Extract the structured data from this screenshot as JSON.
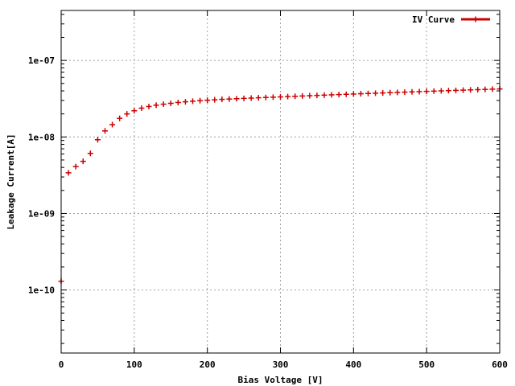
{
  "chart_data": {
    "type": "scatter",
    "title": "",
    "xlabel": "Bias Voltage [V]",
    "ylabel": "Leakage Current[A]",
    "xlim": [
      0,
      600
    ],
    "ylim": [
      1.5e-11,
      4.5e-07
    ],
    "yscale": "log",
    "grid": true,
    "legend_position": "top-right",
    "x_ticks": [
      "0",
      "100",
      "200",
      "300",
      "400",
      "500",
      "600"
    ],
    "y_ticks": [
      "1e-10",
      "1e-09",
      "1e-08",
      "1e-07"
    ],
    "series": [
      {
        "name": "IV Curve",
        "color": "#cc0000",
        "marker": "plus",
        "x": [
          0,
          10,
          20,
          30,
          40,
          50,
          60,
          70,
          80,
          90,
          100,
          110,
          120,
          130,
          140,
          150,
          160,
          170,
          180,
          190,
          200,
          210,
          220,
          230,
          240,
          250,
          260,
          270,
          280,
          290,
          300,
          310,
          320,
          330,
          340,
          350,
          360,
          370,
          380,
          390,
          400,
          410,
          420,
          430,
          440,
          450,
          460,
          470,
          480,
          490,
          500,
          510,
          520,
          530,
          540,
          550,
          560,
          570,
          580,
          590,
          600
        ],
        "y": [
          1.3e-10,
          3.4e-09,
          4.1e-09,
          4.8e-09,
          6.1e-09,
          9.2e-09,
          1.2e-08,
          1.45e-08,
          1.75e-08,
          2e-08,
          2.2e-08,
          2.38e-08,
          2.5e-08,
          2.6e-08,
          2.68e-08,
          2.75e-08,
          2.82e-08,
          2.88e-08,
          2.93e-08,
          2.98e-08,
          3.02e-08,
          3.06e-08,
          3.1e-08,
          3.13e-08,
          3.16e-08,
          3.19e-08,
          3.22e-08,
          3.25e-08,
          3.28e-08,
          3.31e-08,
          3.34e-08,
          3.37e-08,
          3.4e-08,
          3.43e-08,
          3.46e-08,
          3.49e-08,
          3.52e-08,
          3.55e-08,
          3.58e-08,
          3.61e-08,
          3.64e-08,
          3.67e-08,
          3.7e-08,
          3.73e-08,
          3.76e-08,
          3.79e-08,
          3.82e-08,
          3.85e-08,
          3.88e-08,
          3.91e-08,
          3.94e-08,
          3.97e-08,
          4e-08,
          4.03e-08,
          4.06e-08,
          4.09e-08,
          4.12e-08,
          4.15e-08,
          4.18e-08,
          4.21e-08,
          4.24e-08
        ]
      }
    ]
  }
}
